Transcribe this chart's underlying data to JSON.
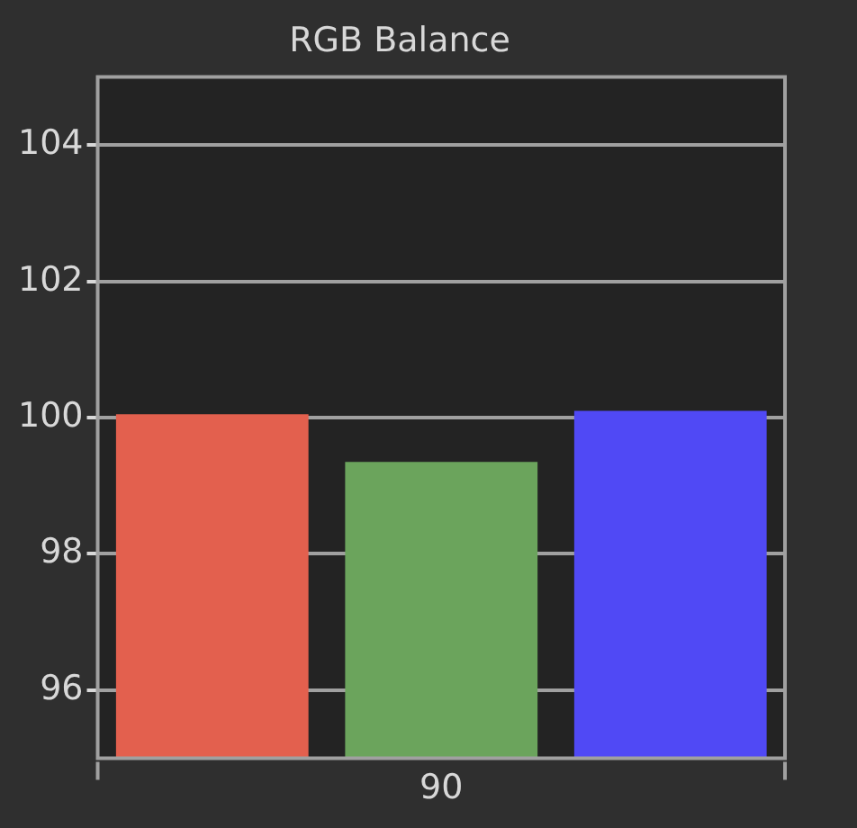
{
  "chart_data": {
    "type": "bar",
    "title": "RGB Balance",
    "categories": [
      null,
      "90",
      null
    ],
    "values": [
      100.05,
      99.35,
      100.1
    ],
    "colors": [
      "#e3604e",
      "#6ba45c",
      "#5049f5"
    ],
    "ylim": [
      95,
      105
    ],
    "yticks": [
      96,
      98,
      100,
      102,
      104
    ],
    "grid": "y",
    "legend": false
  }
}
